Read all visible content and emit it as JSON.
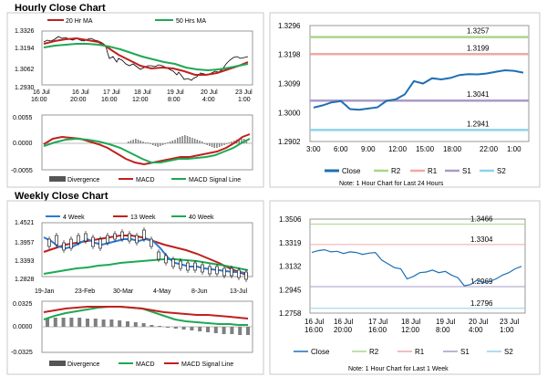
{
  "titles": {
    "hourly": "Hourly Close Chart",
    "weekly": "Weekly Close Chart"
  },
  "colors": {
    "close": "#1f6fb5",
    "ma_short": "#c0201e",
    "ma_long": "#1fa854",
    "ma_mid_weekly": "#2a7bd6",
    "R2": "#a8d78a",
    "R1": "#f0a7a7",
    "S1": "#a99bc6",
    "S2": "#8fd3e8",
    "hist": "#7f7f7f"
  },
  "hourly_price": {
    "legend": [
      {
        "name": "20 Hr MA",
        "color": "#c0201e"
      },
      {
        "name": "50 Hrs MA",
        "color": "#1fa854"
      }
    ],
    "y_ticks": [
      "1.3326",
      "1.3194",
      "1.3062",
      "1.2930"
    ],
    "x_ticks": [
      [
        "16 Jul",
        "16:00"
      ],
      [
        "16 Jul",
        "20:00"
      ],
      [
        "17 Jul",
        "16:00"
      ],
      [
        "18 Jul",
        "12:00"
      ],
      [
        "19 Jul",
        "8:00"
      ],
      [
        "20 Jul",
        "4:00"
      ],
      [
        "23 Jul",
        "1:00"
      ]
    ]
  },
  "hourly_macd": {
    "y_ticks": [
      "0.0055",
      "0.0000",
      "-0.0055"
    ],
    "legend": [
      {
        "name": "Divergence",
        "color": "#555555"
      },
      {
        "name": "MACD",
        "color": "#c0201e"
      },
      {
        "name": "MACD Signal Line",
        "color": "#1fa854"
      }
    ]
  },
  "hourly_levels": {
    "y_ticks": [
      "1.3296",
      "1.3198",
      "1.3099",
      "1.3000",
      "1.2902"
    ],
    "x_ticks": [
      "3:00",
      "6:00",
      "9:00",
      "12:00",
      "15:00",
      "18:00",
      "22:00",
      "1:00"
    ],
    "levels": [
      {
        "name": "R2",
        "value": 1.3257,
        "label": "1.3257"
      },
      {
        "name": "R1",
        "value": 1.3199,
        "label": "1.3199"
      },
      {
        "name": "S1",
        "value": 1.3041,
        "label": "1.3041"
      },
      {
        "name": "S2",
        "value": 1.2941,
        "label": "1.2941"
      }
    ],
    "legend": [
      "Close",
      "R2",
      "R1",
      "S1",
      "S2"
    ],
    "note": "Note: 1 Hour Chart for Last 24 Hours"
  },
  "weekly_price": {
    "legend": [
      {
        "name": "4 Week",
        "color": "#2a7bd6"
      },
      {
        "name": "13 Week",
        "color": "#c0201e"
      },
      {
        "name": "40 Week",
        "color": "#1fa854"
      }
    ],
    "y_ticks": [
      "1.4521",
      "1.3957",
      "1.3393",
      "1.2828"
    ],
    "x_ticks": [
      "19-Jan",
      "23-Feb",
      "30-Mar",
      "4-May",
      "8-Jun",
      "13-Jul"
    ]
  },
  "weekly_macd": {
    "y_ticks": [
      "0.0325",
      "0.0000",
      "-0.0325"
    ],
    "legend": [
      {
        "name": "Divergence",
        "color": "#555555"
      },
      {
        "name": "MACD",
        "color": "#1fa854"
      },
      {
        "name": "MACD Signal Line",
        "color": "#c0201e"
      }
    ]
  },
  "weekly_levels": {
    "y_ticks": [
      "1.3506",
      "1.3319",
      "1.3132",
      "1.2945",
      "1.2758"
    ],
    "x_ticks": [
      [
        "16 Jul",
        "16:00"
      ],
      [
        "16 Jul",
        "20:00"
      ],
      [
        "17 Jul",
        "16:00"
      ],
      [
        "18 Jul",
        "12:00"
      ],
      [
        "19 Jul",
        "8:00"
      ],
      [
        "20 Jul",
        "4:00"
      ],
      [
        "23 Jul",
        "1:00"
      ]
    ],
    "levels": [
      {
        "name": "R2",
        "value": 1.3466,
        "label": "1.3466"
      },
      {
        "name": "R1",
        "value": 1.3304,
        "label": "1.3304"
      },
      {
        "name": "S1",
        "value": 1.2969,
        "label": "1.2969"
      },
      {
        "name": "S2",
        "value": 1.2796,
        "label": "1.2796"
      }
    ],
    "legend": [
      "Close",
      "R2",
      "R1",
      "S1",
      "S2"
    ],
    "note": "Note: 1 Hour Chart for Last 1 Week"
  },
  "chart_data": [
    {
      "type": "line",
      "ylim": [
        1.2902,
        1.3296
      ],
      "x": [
        "3:00",
        "4:00",
        "5:00",
        "6:00",
        "7:00",
        "8:00",
        "9:00",
        "10:00",
        "11:00",
        "12:00",
        "13:00",
        "14:00",
        "15:00",
        "16:00",
        "17:00",
        "18:00",
        "19:00",
        "20:00",
        "21:00",
        "22:00",
        "23:00",
        "0:00",
        "1:00",
        "2:00"
      ],
      "series": [
        {
          "name": "Close",
          "values": [
            1.3017,
            1.3025,
            1.3035,
            1.3039,
            1.3012,
            1.301,
            1.3014,
            1.3018,
            1.304,
            1.3045,
            1.3062,
            1.3107,
            1.3099,
            1.3117,
            1.3113,
            1.3118,
            1.3128,
            1.3131,
            1.313,
            1.3133,
            1.3139,
            1.3144,
            1.3142,
            1.3136
          ]
        }
      ]
    },
    {
      "type": "line",
      "ylim": [
        1.2758,
        1.3506
      ],
      "series": [
        {
          "name": "Close",
          "values": [
            1.324,
            1.3255,
            1.3262,
            1.3245,
            1.325,
            1.3232,
            1.3245,
            1.324,
            1.3225,
            1.3235,
            1.324,
            1.318,
            1.315,
            1.312,
            1.311,
            1.303,
            1.305,
            1.308,
            1.3085,
            1.31,
            1.308,
            1.309,
            1.306,
            1.304,
            1.2975,
            1.2985,
            1.302,
            1.3,
            1.301,
            1.303,
            1.306,
            1.308,
            1.311,
            1.313
          ]
        }
      ]
    }
  ]
}
